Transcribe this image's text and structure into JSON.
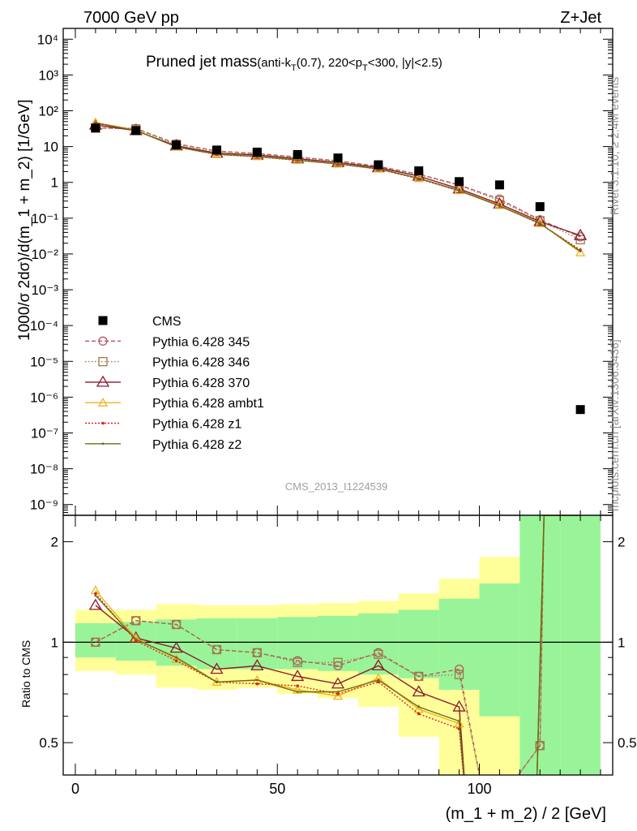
{
  "header": {
    "left": "7000 GeV pp",
    "right": "Z+Jet"
  },
  "title": {
    "main": "Pruned jet mass",
    "detail_prefix": "(anti-k",
    "detail_sub": "T",
    "detail_mid": "(0.7), 220<p",
    "detail_sub2": "T",
    "detail_suffix": "<300, |y|<2.5)"
  },
  "side_labels": {
    "rivet": "Rivet 3.1.10, ≥ 2.4M events",
    "mcplots": "mcplots.cern.ch [arXiv:1306.3436]"
  },
  "watermark": "CMS_2013_I1224539",
  "colors": {
    "cms": "#000000",
    "p345": "#b85561",
    "p346": "#9c7a43",
    "p370": "#8b1a2b",
    "ambt1": "#f0b323",
    "z1": "#e02020",
    "z2": "#6b6b1a",
    "band_inner": "#99f499",
    "band_outer": "#ffff99"
  },
  "chart_data": [
    {
      "type": "line",
      "panel": "main",
      "ylabel": "1000/σ 2dσ)/d(m_1 + m_2) [1/GeV]",
      "yscale": "log",
      "ylim": [
        5e-10,
        20000.0
      ],
      "xlim": [
        -3,
        133
      ],
      "y_ticks": [
        "10⁻⁹",
        "10⁻⁸",
        "10⁻⁷",
        "10⁻⁶",
        "10⁻⁵",
        "10⁻⁴",
        "10⁻³",
        "10⁻²",
        "10⁻¹",
        "1",
        "10",
        "10²",
        "10³",
        "10⁴"
      ],
      "x": [
        5,
        15,
        25,
        35,
        45,
        55,
        65,
        75,
        85,
        95,
        105,
        115,
        125
      ],
      "cms": [
        33,
        28,
        11,
        8,
        7,
        6,
        4.8,
        3.1,
        2.1,
        1.05,
        0.85,
        0.21,
        4.5e-07
      ],
      "series": [
        {
          "name": "Pythia 6.428 345",
          "key": "p345",
          "marker": "circle",
          "dash": "5,3",
          "values": [
            33,
            32,
            12,
            7.5,
            6.4,
            5.1,
            4.0,
            2.8,
            1.7,
            0.85,
            0.34,
            0.09,
            0.03
          ]
        },
        {
          "name": "Pythia 6.428 346",
          "key": "p346",
          "marker": "square",
          "dash": "1.5,2.5",
          "values": [
            33,
            31,
            11.5,
            7.4,
            6.3,
            5.0,
            3.9,
            2.7,
            1.65,
            0.82,
            0.31,
            0.085,
            0.025
          ]
        },
        {
          "name": "Pythia 6.428 370",
          "key": "p370",
          "marker": "triangle",
          "dash": "",
          "values": [
            40,
            28,
            10.5,
            6.6,
            5.8,
            4.6,
            3.6,
            2.6,
            1.5,
            0.66,
            0.25,
            0.08,
            0.033
          ]
        },
        {
          "name": "Pythia 6.428 ambt1",
          "key": "ambt1",
          "marker": "triangle-small",
          "dash": "",
          "values": [
            47,
            29,
            9.8,
            6.1,
            5.3,
            4.2,
            3.3,
            2.4,
            1.3,
            0.6,
            0.23,
            0.072,
            0.011
          ]
        },
        {
          "name": "Pythia 6.428 z1",
          "key": "z1",
          "marker": "dot",
          "dash": "2,2",
          "values": [
            46,
            28.5,
            9.7,
            6.0,
            5.2,
            4.1,
            3.25,
            2.35,
            1.25,
            0.58,
            0.22,
            0.07,
            0.013
          ]
        },
        {
          "name": "Pythia 6.428 z2",
          "key": "z2",
          "marker": "dot-small",
          "dash": "",
          "values": [
            45,
            28,
            9.9,
            6.1,
            5.3,
            4.2,
            3.3,
            2.4,
            1.3,
            0.59,
            0.22,
            0.071,
            0.012
          ]
        }
      ],
      "legend": [
        "CMS",
        "Pythia 6.428 345",
        "Pythia 6.428 346",
        "Pythia 6.428 370",
        "Pythia 6.428 ambt1",
        "Pythia 6.428 z1",
        "Pythia 6.428 z2"
      ],
      "legend_position": "bottom-left"
    },
    {
      "type": "line",
      "panel": "ratio",
      "ylabel": "Ratio to CMS",
      "xlabel": "(m_1 + m_2) / 2 [GeV]",
      "yscale": "log",
      "ylim": [
        0.4,
        2.4
      ],
      "xlim": [
        -3,
        133
      ],
      "x_ticks": [
        "0",
        "50",
        "100"
      ],
      "y_ticks": [
        "0.5",
        "1",
        "2"
      ],
      "bins": [
        [
          0,
          10
        ],
        [
          10,
          20
        ],
        [
          20,
          30
        ],
        [
          30,
          40
        ],
        [
          40,
          50
        ],
        [
          50,
          60
        ],
        [
          60,
          70
        ],
        [
          70,
          80
        ],
        [
          80,
          90
        ],
        [
          90,
          100
        ],
        [
          100,
          110
        ],
        [
          110,
          120
        ],
        [
          120,
          130
        ]
      ],
      "band_inner": [
        [
          0.9,
          1.14
        ],
        [
          0.88,
          1.15
        ],
        [
          0.85,
          1.17
        ],
        [
          0.83,
          1.18
        ],
        [
          0.83,
          1.18
        ],
        [
          0.83,
          1.19
        ],
        [
          0.82,
          1.2
        ],
        [
          0.8,
          1.22
        ],
        [
          0.78,
          1.25
        ],
        [
          0.72,
          1.35
        ],
        [
          0.6,
          1.5
        ],
        [
          0.3,
          2.6
        ],
        [
          0.3,
          2.6
        ]
      ],
      "band_outer": [
        [
          0.82,
          1.25
        ],
        [
          0.8,
          1.25
        ],
        [
          0.73,
          1.3
        ],
        [
          0.72,
          1.29
        ],
        [
          0.73,
          1.29
        ],
        [
          0.7,
          1.3
        ],
        [
          0.68,
          1.31
        ],
        [
          0.64,
          1.33
        ],
        [
          0.52,
          1.4
        ],
        [
          0.3,
          1.55
        ],
        [
          0.3,
          1.8
        ],
        [
          0.3,
          2.6
        ],
        [
          0.3,
          2.6
        ]
      ],
      "ratios": [
        {
          "key": "p345",
          "x": [
            5,
            15,
            25,
            35,
            45,
            55,
            65,
            75,
            85,
            95,
            102,
            115,
            116,
            125
          ],
          "values": [
            1.0,
            1.16,
            1.13,
            0.95,
            0.93,
            0.88,
            0.85,
            0.93,
            0.79,
            0.83,
            0.3,
            0.49,
            2.4,
            2.4
          ]
        },
        {
          "key": "p346",
          "x": [
            5,
            15,
            25,
            35,
            45,
            55,
            65,
            75,
            85,
            95,
            102,
            115,
            116,
            125
          ],
          "values": [
            1.0,
            1.16,
            1.13,
            0.95,
            0.93,
            0.87,
            0.87,
            0.92,
            0.79,
            0.8,
            0.3,
            0.49,
            2.4,
            2.4
          ]
        },
        {
          "key": "p370",
          "x": [
            5,
            15,
            25,
            35,
            45,
            55,
            65,
            75,
            85,
            95,
            97,
            114,
            116,
            125
          ],
          "values": [
            1.29,
            1.03,
            0.96,
            0.83,
            0.85,
            0.79,
            0.75,
            0.85,
            0.71,
            0.64,
            0.3,
            0.3,
            2.4,
            2.4
          ]
        },
        {
          "key": "ambt1",
          "x": [
            5,
            15,
            25,
            35,
            45,
            55,
            65,
            75,
            85,
            95,
            97,
            114,
            116,
            125
          ],
          "values": [
            1.43,
            1.03,
            0.89,
            0.76,
            0.77,
            0.72,
            0.69,
            0.78,
            0.63,
            0.57,
            0.3,
            0.3,
            2.4,
            2.4
          ]
        },
        {
          "key": "z1",
          "x": [
            5,
            15,
            25,
            35,
            45,
            55,
            65,
            75,
            85,
            95,
            97,
            114,
            116,
            125
          ],
          "values": [
            1.4,
            1.01,
            0.88,
            0.76,
            0.75,
            0.74,
            0.7,
            0.76,
            0.61,
            0.55,
            0.3,
            0.3,
            2.4,
            2.4
          ]
        },
        {
          "key": "z2",
          "x": [
            5,
            15,
            25,
            35,
            45,
            55,
            65,
            75,
            85,
            95,
            97,
            114,
            116,
            125
          ],
          "values": [
            1.38,
            1.02,
            0.9,
            0.76,
            0.77,
            0.71,
            0.71,
            0.77,
            0.64,
            0.58,
            0.3,
            0.3,
            2.4,
            2.4
          ]
        }
      ],
      "reference_line": 1
    }
  ]
}
